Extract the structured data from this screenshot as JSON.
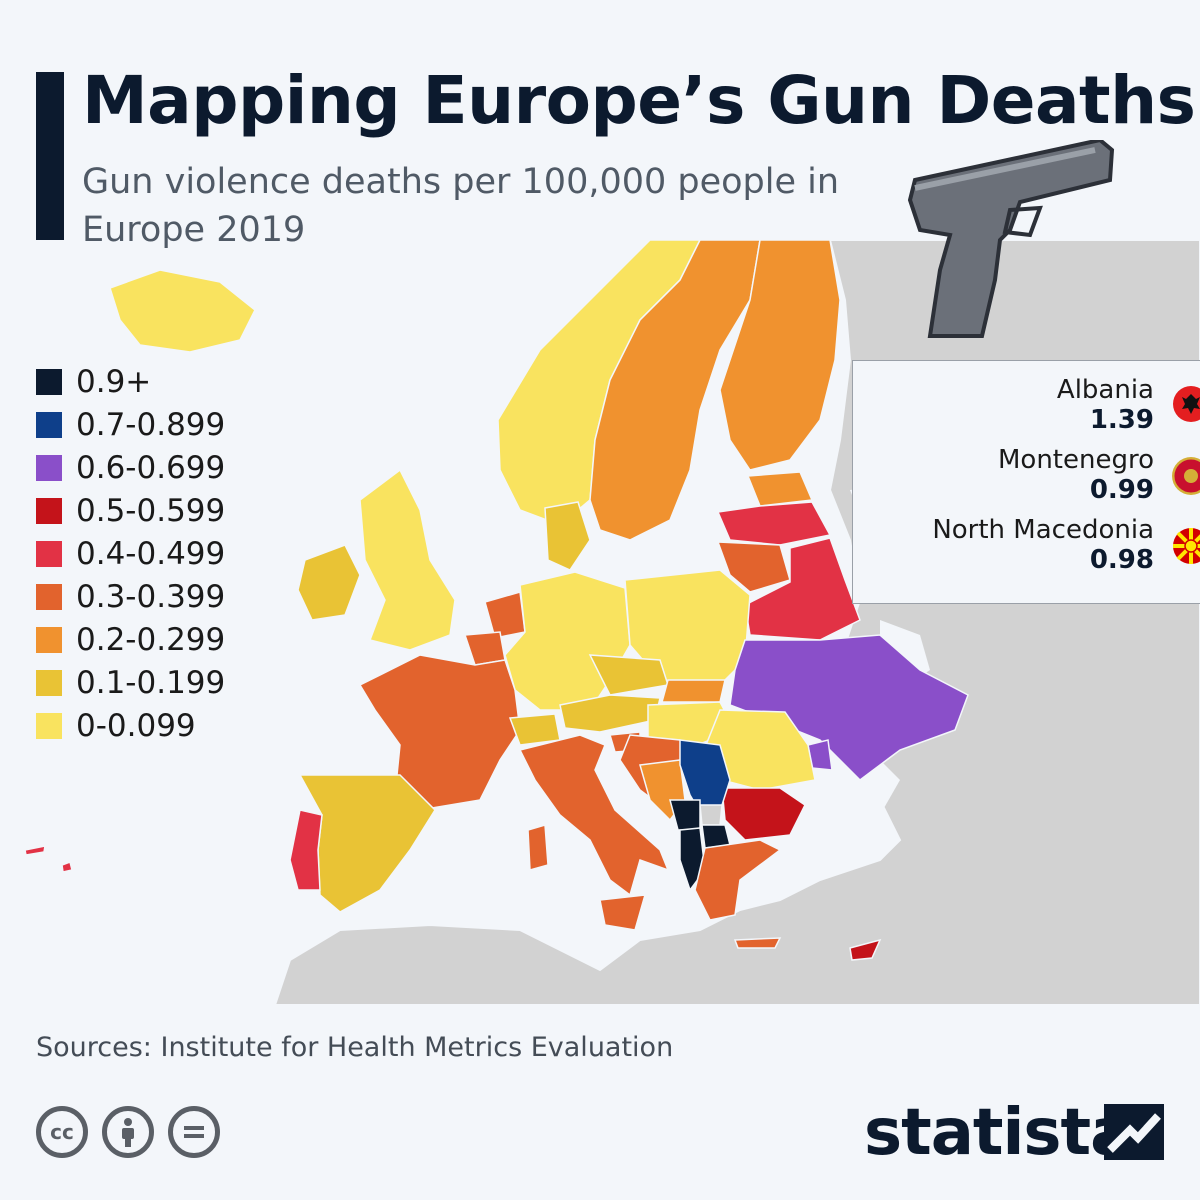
{
  "title": "Mapping Europe’s Gun Deaths",
  "subtitle": "Gun violence deaths per 100,000 people in Europe 2019",
  "legend": {
    "items": [
      {
        "label": "0.9+",
        "color": "#0c1a2e"
      },
      {
        "label": "0.7-0.899",
        "color": "#0e3f8a"
      },
      {
        "label": "0.6-0.699",
        "color": "#8a4fc9"
      },
      {
        "label": "0.5-0.599",
        "color": "#c4131a"
      },
      {
        "label": "0.4-0.499",
        "color": "#e23245"
      },
      {
        "label": "0.3-0.399",
        "color": "#e2632d"
      },
      {
        "label": "0.2-0.299",
        "color": "#f0922f"
      },
      {
        "label": "0.1-0.199",
        "color": "#e9c335"
      },
      {
        "label": "0-0.099",
        "color": "#f9e35f"
      }
    ]
  },
  "callout": {
    "entries": [
      {
        "country": "Albania",
        "value": "1.39",
        "flag": "albania-flag-icon"
      },
      {
        "country": "Montenegro",
        "value": "0.99",
        "flag": "montenegro-flag-icon"
      },
      {
        "country": "North Macedonia",
        "value": "0.98",
        "flag": "north-macedonia-flag-icon"
      }
    ]
  },
  "source": "Sources: Institute for Health Metrics Evaluation",
  "brand": "statista",
  "license_icons": [
    "cc-icon",
    "attribution-icon",
    "no-derivatives-icon"
  ],
  "colors": {
    "non_europe": "#d2d2d2",
    "background": "#f3f6fa"
  }
}
